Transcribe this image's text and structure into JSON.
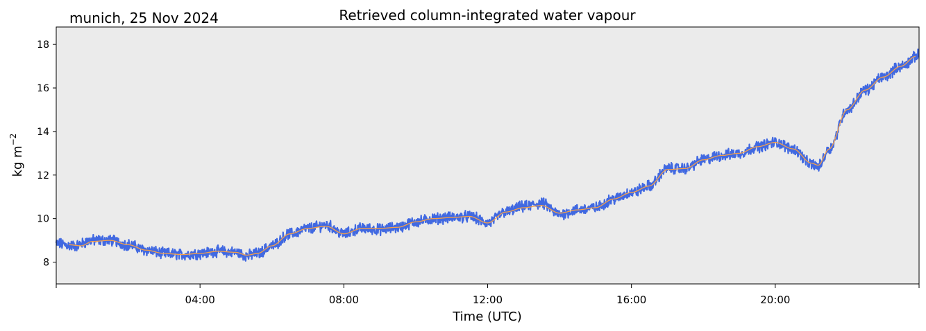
{
  "chart_data": {
    "type": "line",
    "title": "Retrieved column-integrated water vapour",
    "subtitle": "munich, 25 Nov 2024",
    "xlabel": "Time (UTC)",
    "ylabel": "kg m",
    "ylabel_sup": "−2",
    "xlim": [
      0,
      24
    ],
    "ylim": [
      7,
      18.8
    ],
    "x_ticks": [
      0,
      4,
      8,
      12,
      16,
      20,
      24
    ],
    "x_tick_labels": [
      "04:00",
      "08:00",
      "12:00",
      "16:00",
      "20:00"
    ],
    "x_tick_label_hours": [
      4,
      8,
      12,
      16,
      20
    ],
    "y_ticks": [
      8,
      10,
      12,
      14,
      16,
      18
    ],
    "y_tick_labels": [
      "8",
      "10",
      "12",
      "14",
      "16",
      "18"
    ],
    "background_color": "#ebebeb",
    "grid": false,
    "series": [
      {
        "role": "raw",
        "color": "#4169e1",
        "x": [
          0.0,
          0.5,
          1.0,
          1.5,
          2.0,
          2.5,
          3.0,
          3.5,
          4.0,
          4.5,
          5.0,
          5.3,
          5.6,
          6.0,
          6.5,
          7.0,
          7.5,
          8.0,
          8.5,
          9.0,
          9.5,
          10.0,
          10.5,
          11.0,
          11.5,
          12.0,
          12.5,
          13.0,
          13.5,
          14.0,
          14.5,
          15.0,
          15.5,
          16.0,
          16.5,
          17.0,
          17.5,
          18.0,
          18.5,
          19.0,
          19.5,
          20.0,
          20.5,
          21.0,
          21.2,
          21.5,
          22.0,
          22.5,
          23.0,
          23.5,
          24.0
        ],
        "y": [
          8.85,
          8.75,
          9.0,
          9.0,
          8.8,
          8.55,
          8.4,
          8.35,
          8.4,
          8.5,
          8.45,
          8.3,
          8.4,
          8.75,
          9.3,
          9.55,
          9.7,
          9.3,
          9.55,
          9.5,
          9.6,
          9.85,
          10.0,
          10.05,
          10.1,
          9.8,
          10.3,
          10.55,
          10.7,
          10.2,
          10.4,
          10.5,
          10.9,
          11.2,
          11.5,
          12.3,
          12.3,
          12.7,
          12.9,
          13.0,
          13.3,
          13.5,
          13.2,
          12.5,
          12.4,
          13.2,
          15.0,
          15.9,
          16.5,
          17.0,
          17.5
        ]
      },
      {
        "role": "smoothed",
        "color": "#f5a04a",
        "x": [
          0.35,
          0.7,
          1.0,
          1.5,
          2.0,
          2.5,
          3.0,
          3.5,
          4.0,
          4.5,
          5.0,
          5.3,
          5.6,
          6.0,
          6.5,
          7.0,
          7.5,
          8.0,
          8.5,
          9.0,
          9.5,
          10.0,
          10.5,
          11.0,
          11.5,
          12.0,
          12.5,
          13.0,
          13.5,
          14.0,
          14.5,
          15.0,
          15.5,
          16.0,
          16.5,
          17.0,
          17.5,
          18.0,
          18.5,
          19.0,
          19.5,
          20.0,
          20.5,
          21.0,
          21.2,
          21.5,
          22.0,
          22.5,
          23.0,
          23.5,
          23.9
        ],
        "y": [
          8.8,
          8.75,
          8.95,
          9.0,
          8.8,
          8.55,
          8.4,
          8.35,
          8.4,
          8.5,
          8.45,
          8.32,
          8.4,
          8.75,
          9.3,
          9.55,
          9.65,
          9.3,
          9.55,
          9.55,
          9.6,
          9.85,
          10.0,
          10.05,
          10.1,
          9.8,
          10.3,
          10.5,
          10.6,
          10.25,
          10.4,
          10.5,
          10.9,
          11.2,
          11.5,
          12.25,
          12.3,
          12.7,
          12.9,
          13.0,
          13.3,
          13.5,
          13.2,
          12.55,
          12.45,
          13.2,
          15.0,
          15.9,
          16.5,
          17.0,
          17.45
        ]
      }
    ]
  }
}
